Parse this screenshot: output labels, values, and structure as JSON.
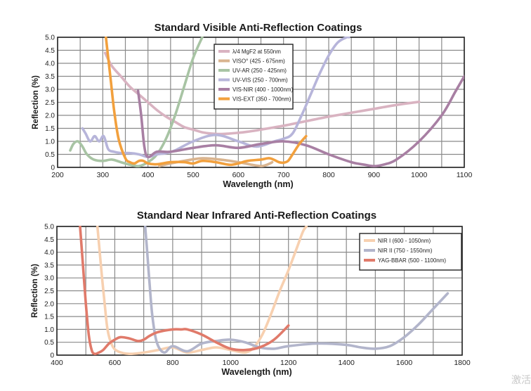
{
  "chart_data": [
    {
      "type": "line",
      "title": "Standard Visible Anti-Reflection Coatings",
      "xlabel": "Wavelength (nm)",
      "ylabel": "Reflection (%)",
      "xlim": [
        200,
        1100
      ],
      "ylim": [
        0,
        5.0
      ],
      "xticks": [
        200,
        300,
        400,
        500,
        600,
        700,
        800,
        900,
        1000,
        1100
      ],
      "yticks": [
        0,
        0.5,
        1.0,
        1.5,
        2.0,
        2.5,
        3.0,
        3.5,
        4.0,
        4.5,
        5.0
      ],
      "ytick_labels": [
        "0",
        "0.5",
        "1.0",
        "1.5",
        "2.0",
        "2.5",
        "3.0",
        "3.5",
        "4.0",
        "4.5",
        "5.0"
      ],
      "grid": true,
      "legend_position": "top-center",
      "series": [
        {
          "name": "λ/4 MgF2 at 550nm",
          "color": "#d9b3c1",
          "x": [
            305,
            320,
            340,
            360,
            380,
            400,
            420,
            440,
            460,
            480,
            500,
            520,
            540,
            560,
            580,
            600,
            620,
            640,
            660,
            680,
            700,
            720,
            740,
            760,
            780,
            800,
            850,
            900,
            950,
            1000
          ],
          "y": [
            4.4,
            3.9,
            3.5,
            3.1,
            2.8,
            2.5,
            2.2,
            1.95,
            1.75,
            1.55,
            1.45,
            1.35,
            1.3,
            1.28,
            1.3,
            1.33,
            1.37,
            1.42,
            1.48,
            1.54,
            1.6,
            1.67,
            1.74,
            1.81,
            1.88,
            1.95,
            2.1,
            2.25,
            2.4,
            2.52
          ]
        },
        {
          "name": "VISO° (425 - 675nm)",
          "color": "#d9b48f",
          "x": [
            425,
            450,
            480,
            520,
            560,
            600,
            630,
            650,
            660,
            670,
            675
          ],
          "y": [
            0.05,
            0.15,
            0.25,
            0.35,
            0.3,
            0.2,
            0.1,
            0.05,
            0.08,
            0.15,
            0.2
          ]
        },
        {
          "name": "UV-AR (250 - 425nm)",
          "color": "#a8c4a4",
          "x": [
            228,
            235,
            245,
            255,
            265,
            280,
            300,
            320,
            340,
            360,
            380,
            400,
            420,
            440,
            460,
            480,
            500,
            520
          ],
          "y": [
            0.65,
            0.9,
            1.0,
            0.8,
            0.5,
            0.3,
            0.25,
            0.3,
            0.2,
            0.1,
            0.05,
            0.2,
            0.5,
            1.1,
            2.0,
            3.1,
            4.2,
            5.0
          ]
        },
        {
          "name": "UV-VIS (250 - 700nm)",
          "color": "#b7b5da",
          "x": [
            255,
            262,
            272,
            282,
            292,
            302,
            312,
            325,
            340,
            360,
            380,
            400,
            420,
            440,
            460,
            500,
            550,
            600,
            640,
            680,
            700,
            720,
            740,
            760,
            780,
            800,
            820,
            840,
            845
          ],
          "y": [
            1.5,
            1.3,
            1.0,
            1.2,
            1.0,
            1.2,
            0.7,
            0.6,
            0.55,
            0.55,
            0.5,
            0.4,
            0.5,
            0.55,
            0.65,
            1.0,
            1.25,
            1.0,
            0.8,
            1.0,
            1.1,
            1.3,
            2.0,
            2.8,
            3.6,
            4.3,
            4.8,
            5.0,
            5.0
          ]
        },
        {
          "name": "VIS-NIR (400 - 1000nm)",
          "color": "#a87fa3",
          "x": [
            378,
            385,
            392,
            400,
            420,
            450,
            500,
            550,
            600,
            650,
            700,
            750,
            800,
            850,
            880,
            900,
            920,
            950,
            1000,
            1050,
            1080,
            1100
          ],
          "y": [
            2.95,
            2.0,
            0.8,
            0.4,
            0.6,
            0.6,
            0.75,
            0.85,
            0.75,
            0.9,
            1.0,
            0.85,
            0.5,
            0.2,
            0.1,
            0.05,
            0.1,
            0.3,
            1.0,
            2.0,
            2.9,
            3.5
          ]
        },
        {
          "name": "VIS-EXT (350 - 700nm)",
          "color": "#f2a03d",
          "x": [
            307,
            312,
            318,
            325,
            335,
            350,
            360,
            370,
            380,
            390,
            400,
            420,
            450,
            480,
            500,
            520,
            550,
            580,
            600,
            620,
            650,
            670,
            690,
            700,
            710,
            720,
            735,
            750
          ],
          "y": [
            5.0,
            4.2,
            3.3,
            2.2,
            1.1,
            0.35,
            0.2,
            0.15,
            0.25,
            0.25,
            0.15,
            0.12,
            0.2,
            0.2,
            0.15,
            0.25,
            0.2,
            0.1,
            0.15,
            0.25,
            0.3,
            0.35,
            0.2,
            0.18,
            0.25,
            0.5,
            0.9,
            1.2
          ]
        }
      ]
    },
    {
      "type": "line",
      "title": "Standard Near Infrared Anti-Reflection Coatings",
      "xlabel": "Wavelength (nm)",
      "ylabel": "Reflection (%)",
      "xlim": [
        400,
        1800
      ],
      "ylim": [
        0,
        5.0
      ],
      "xticks": [
        400,
        600,
        800,
        1000,
        1200,
        1400,
        1600,
        1800
      ],
      "yticks": [
        0,
        0.5,
        1.0,
        1.5,
        2.0,
        2.5,
        3.0,
        3.5,
        4.0,
        4.5,
        5.0
      ],
      "ytick_labels": [
        "0",
        "0.5",
        "1.0",
        "1.5",
        "2.0",
        "2.5",
        "3.0",
        "3.5",
        "4.0",
        "4.5",
        "5.0"
      ],
      "grid": true,
      "legend_position": "top-right",
      "series": [
        {
          "name": "NIR I (600 - 1050nm)",
          "color": "#f7d0b0",
          "x": [
            540,
            548,
            556,
            565,
            575,
            590,
            610,
            650,
            700,
            750,
            800,
            850,
            900,
            950,
            1000,
            1050,
            1080,
            1110,
            1140,
            1170,
            1200,
            1230,
            1250,
            1262
          ],
          "y": [
            5.0,
            4.0,
            3.0,
            2.0,
            1.0,
            0.4,
            0.15,
            0.05,
            0.1,
            0.2,
            0.3,
            0.1,
            0.2,
            0.3,
            0.2,
            0.1,
            0.3,
            0.8,
            1.6,
            2.5,
            3.3,
            4.2,
            4.8,
            5.0
          ]
        },
        {
          "name": "NIR II (750 - 1550nm)",
          "color": "#b2b5cb",
          "x": [
            705,
            712,
            720,
            730,
            745,
            770,
            800,
            850,
            900,
            950,
            1000,
            1050,
            1100,
            1150,
            1200,
            1300,
            1400,
            1450,
            1500,
            1550,
            1600,
            1650,
            1700,
            1750
          ],
          "y": [
            5.0,
            4.0,
            2.8,
            1.5,
            0.5,
            0.1,
            0.35,
            0.15,
            0.45,
            0.55,
            0.6,
            0.5,
            0.3,
            0.25,
            0.35,
            0.45,
            0.4,
            0.3,
            0.25,
            0.35,
            0.7,
            1.2,
            1.8,
            2.4
          ]
        },
        {
          "name": "YAG-BBAR (500 - 1100nm)",
          "color": "#e07a6a",
          "x": [
            480,
            490,
            500,
            510,
            520,
            530,
            545,
            560,
            580,
            600,
            620,
            650,
            680,
            700,
            720,
            750,
            800,
            830,
            850,
            900,
            950,
            1000,
            1050,
            1100,
            1150,
            1200
          ],
          "y": [
            5.0,
            3.5,
            2.0,
            0.8,
            0.2,
            0.05,
            0.1,
            0.2,
            0.45,
            0.6,
            0.7,
            0.65,
            0.55,
            0.6,
            0.75,
            0.9,
            1.0,
            1.0,
            1.0,
            0.8,
            0.5,
            0.25,
            0.2,
            0.3,
            0.6,
            1.15
          ]
        }
      ]
    }
  ],
  "watermark": "激活"
}
